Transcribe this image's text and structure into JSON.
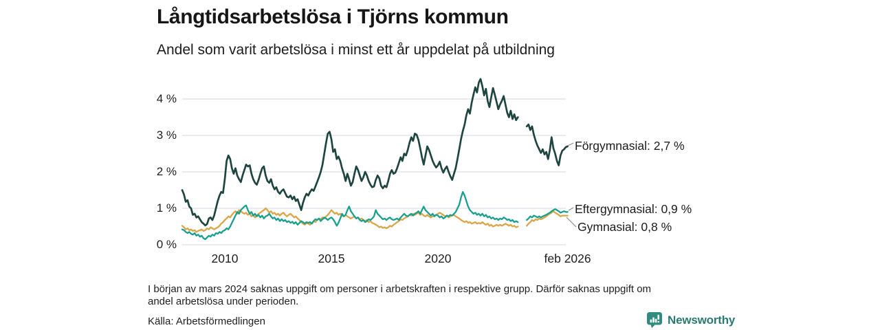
{
  "header": {
    "title": "Långtidsarbetslösa i Tjörns kommun",
    "subtitle": "Andel som varit arbetslösa i minst ett år uppdelat på utbildning"
  },
  "chart_data": {
    "type": "line",
    "title": "Långtidsarbetslösa i Tjörns kommun",
    "subtitle": "Andel som varit arbetslösa i minst ett år uppdelat på utbildning",
    "unit": "%",
    "grid": true,
    "x_start_year": 2008.0,
    "points_per_year": 12,
    "x_end": "feb 2026",
    "ylim": [
      0,
      4.6
    ],
    "y_ticks": [
      {
        "value": 0,
        "label": "0 %"
      },
      {
        "value": 1,
        "label": "1 %"
      },
      {
        "value": 2,
        "label": "2 %"
      },
      {
        "value": 3,
        "label": "3 %"
      },
      {
        "value": 4,
        "label": "4 %"
      }
    ],
    "x_ticks": [
      {
        "t": 2010,
        "label": "2010"
      },
      {
        "t": 2015,
        "label": "2015"
      },
      {
        "t": 2020,
        "label": "2020"
      },
      {
        "t": 2026.083,
        "label": "feb 2026"
      }
    ],
    "annotations": [
      {
        "text": "Förgymnasial: 2,7 %"
      },
      {
        "text": "Eftergymnasial: 0,9 %"
      },
      {
        "text": "Gymnasial: 0,8 %"
      }
    ],
    "series": [
      {
        "name": "Förgymnasial",
        "color": "#1e4540",
        "end_value": "2,7 %",
        "values": [
          1.5,
          1.38,
          1.18,
          1.22,
          1.05,
          1.0,
          0.82,
          0.85,
          0.75,
          0.78,
          0.7,
          0.62,
          0.58,
          0.53,
          0.57,
          0.72,
          0.75,
          0.68,
          0.8,
          1.0,
          1.2,
          1.35,
          1.45,
          1.42,
          1.8,
          2.3,
          2.45,
          2.35,
          2.1,
          1.95,
          2.1,
          1.9,
          1.8,
          1.72,
          1.9,
          2.05,
          2.2,
          2.15,
          2.18,
          1.95,
          1.8,
          1.7,
          1.65,
          1.78,
          1.95,
          2.1,
          2.15,
          1.9,
          1.75,
          1.7,
          1.8,
          1.62,
          1.52,
          1.58,
          1.45,
          1.4,
          1.48,
          1.52,
          1.42,
          1.32,
          1.3,
          1.35,
          1.25,
          1.32,
          1.2,
          1.25,
          1.1,
          0.95,
          1.15,
          1.3,
          1.4,
          1.35,
          1.45,
          1.52,
          1.48,
          1.6,
          1.72,
          1.85,
          2.0,
          2.2,
          2.5,
          2.8,
          3.05,
          3.1,
          2.9,
          2.55,
          2.62,
          2.35,
          2.42,
          2.3,
          2.1,
          1.95,
          1.75,
          1.95,
          1.8,
          1.62,
          1.72,
          1.95,
          2.15,
          2.05,
          1.9,
          1.75,
          1.85,
          2.0,
          1.9,
          1.75,
          1.65,
          1.58,
          1.6,
          1.78,
          1.9,
          1.82,
          1.62,
          1.55,
          1.62,
          1.58,
          1.75,
          1.95,
          2.05,
          1.95,
          1.98,
          2.1,
          2.25,
          2.4,
          2.3,
          2.5,
          2.45,
          2.6,
          2.8,
          2.95,
          2.85,
          3.05,
          3.02,
          2.88,
          2.65,
          2.4,
          2.2,
          2.45,
          2.7,
          2.6,
          2.45,
          2.3,
          2.2,
          2.12,
          2.18,
          2.28,
          2.1,
          1.98,
          2.08,
          2.15,
          2.0,
          1.88,
          1.78,
          1.95,
          2.1,
          2.35,
          2.62,
          2.9,
          3.12,
          3.3,
          3.55,
          3.72,
          3.6,
          3.9,
          4.12,
          4.32,
          4.18,
          4.45,
          4.55,
          4.35,
          4.1,
          4.28,
          3.95,
          3.78,
          4.05,
          4.3,
          4.12,
          3.92,
          3.72,
          3.85,
          3.95,
          4.08,
          3.85,
          3.62,
          3.5,
          3.68,
          3.45,
          3.58,
          3.42,
          3.5,
          null,
          null,
          null,
          null,
          3.25,
          3.3,
          3.15,
          3.25,
          3.02,
          2.85,
          2.72,
          2.62,
          2.52,
          2.62,
          2.48,
          2.55,
          2.35,
          2.6,
          2.95,
          2.65,
          2.5,
          2.3,
          2.18,
          2.45,
          2.58,
          2.62,
          2.68,
          2.7
        ]
      },
      {
        "name": "Eftergymnasial",
        "color": "#18a08e",
        "end_value": "0,9 %",
        "values": [
          0.42,
          0.4,
          0.35,
          0.32,
          0.35,
          0.3,
          0.28,
          0.32,
          0.25,
          0.28,
          0.22,
          0.25,
          0.18,
          0.15,
          0.2,
          0.25,
          0.22,
          0.28,
          0.25,
          0.32,
          0.3,
          0.35,
          0.32,
          0.38,
          0.4,
          0.45,
          0.42,
          0.5,
          0.6,
          0.7,
          0.8,
          0.9,
          0.85,
          0.95,
          1.0,
          1.05,
          1.08,
          0.95,
          0.85,
          0.9,
          0.8,
          0.85,
          0.78,
          0.82,
          0.75,
          0.8,
          0.72,
          0.78,
          0.8,
          0.85,
          0.78,
          0.72,
          0.75,
          0.68,
          0.72,
          0.65,
          0.7,
          0.65,
          0.68,
          0.62,
          0.65,
          0.6,
          0.63,
          0.58,
          0.62,
          0.55,
          0.6,
          0.65,
          0.62,
          0.58,
          0.62,
          0.6,
          0.62,
          0.58,
          0.65,
          0.7,
          0.68,
          0.72,
          0.65,
          0.7,
          0.75,
          0.72,
          0.68,
          0.72,
          0.75,
          0.7,
          0.62,
          0.52,
          0.6,
          0.72,
          0.85,
          0.78,
          0.82,
          0.95,
          1.05,
          0.92,
          0.85,
          0.78,
          0.72,
          0.75,
          0.68,
          0.65,
          0.68,
          0.62,
          0.65,
          0.7,
          0.68,
          0.72,
          0.78,
          0.95,
          0.85,
          0.8,
          0.75,
          0.7,
          0.72,
          0.68,
          0.72,
          0.75,
          0.7,
          0.68,
          0.7,
          0.72,
          0.68,
          0.75,
          0.8,
          0.85,
          0.8,
          0.78,
          0.82,
          0.85,
          0.8,
          0.85,
          0.88,
          0.92,
          0.85,
          0.95,
          1.05,
          0.95,
          0.9,
          0.85,
          0.8,
          0.85,
          0.78,
          0.82,
          0.8,
          0.75,
          0.78,
          0.72,
          0.75,
          0.8,
          0.78,
          0.82,
          0.8,
          0.85,
          0.9,
          1.0,
          1.1,
          1.3,
          1.45,
          1.35,
          1.2,
          1.05,
          0.95,
          0.9,
          0.85,
          0.88,
          0.82,
          0.85,
          0.8,
          0.85,
          0.78,
          0.82,
          0.75,
          0.78,
          0.72,
          0.75,
          0.7,
          0.72,
          0.68,
          0.72,
          0.7,
          0.75,
          0.72,
          0.68,
          0.7,
          0.65,
          0.68,
          0.62,
          0.65,
          0.62,
          null,
          null,
          null,
          null,
          0.68,
          0.72,
          0.78,
          0.75,
          0.8,
          0.78,
          0.75,
          0.78,
          0.75,
          0.78,
          0.8,
          0.82,
          0.85,
          0.88,
          0.92,
          0.95,
          0.98,
          0.95,
          0.92,
          0.88,
          0.9,
          0.92,
          0.9,
          0.9
        ]
      },
      {
        "name": "Gymnasial",
        "color": "#d9a546",
        "end_value": "0,8 %",
        "values": [
          0.52,
          0.48,
          0.42,
          0.45,
          0.4,
          0.42,
          0.38,
          0.4,
          0.35,
          0.38,
          0.4,
          0.42,
          0.38,
          0.4,
          0.45,
          0.42,
          0.48,
          0.45,
          0.42,
          0.45,
          0.48,
          0.52,
          0.58,
          0.62,
          0.68,
          0.72,
          0.78,
          0.75,
          0.82,
          0.88,
          0.92,
          0.85,
          0.95,
          0.92,
          0.88,
          0.85,
          0.88,
          0.82,
          0.85,
          0.78,
          0.82,
          0.75,
          0.8,
          0.85,
          0.88,
          0.92,
          0.95,
          1.0,
          0.95,
          0.88,
          0.92,
          0.85,
          0.88,
          0.82,
          0.85,
          0.8,
          0.85,
          0.88,
          0.82,
          0.78,
          0.82,
          0.85,
          0.8,
          0.75,
          0.78,
          0.72,
          0.68,
          0.62,
          0.58,
          0.55,
          0.6,
          0.58,
          0.55,
          0.6,
          0.65,
          0.62,
          0.68,
          0.72,
          0.7,
          0.75,
          0.72,
          0.78,
          0.82,
          0.88,
          0.95,
          0.9,
          0.85,
          0.88,
          0.82,
          0.85,
          0.8,
          0.78,
          0.82,
          0.78,
          0.75,
          0.72,
          0.75,
          0.78,
          0.72,
          0.75,
          0.7,
          0.72,
          0.68,
          0.65,
          0.68,
          0.62,
          0.65,
          0.6,
          0.58,
          0.55,
          0.52,
          0.48,
          0.5,
          0.46,
          0.48,
          0.45,
          0.48,
          0.52,
          0.5,
          0.55,
          0.58,
          0.62,
          0.65,
          0.7,
          0.68,
          0.72,
          0.75,
          0.78,
          0.82,
          0.8,
          0.85,
          0.82,
          0.85,
          0.88,
          0.82,
          0.85,
          0.8,
          0.78,
          0.82,
          0.78,
          0.75,
          0.78,
          0.8,
          0.82,
          0.85,
          0.88,
          0.85,
          0.82,
          0.78,
          0.8,
          0.75,
          0.78,
          0.8,
          0.82,
          0.78,
          0.75,
          0.72,
          0.68,
          0.65,
          0.62,
          0.65,
          0.6,
          0.62,
          0.58,
          0.6,
          0.62,
          0.58,
          0.6,
          0.58,
          0.62,
          0.58,
          0.55,
          0.58,
          0.52,
          0.55,
          0.5,
          0.52,
          0.55,
          0.52,
          0.55,
          0.52,
          0.55,
          0.58,
          0.55,
          0.52,
          0.55,
          0.5,
          0.52,
          0.48,
          0.5,
          null,
          null,
          null,
          null,
          0.52,
          0.58,
          0.62,
          0.68,
          0.65,
          0.7,
          0.68,
          0.72,
          0.7,
          0.72,
          0.75,
          0.78,
          0.82,
          0.85,
          0.88,
          0.92,
          0.88,
          0.85,
          0.82,
          0.78,
          0.8,
          0.8,
          0.8,
          0.8
        ]
      }
    ],
    "colors": {
      "grid": "#e7e7ee",
      "leader": "#8d8d8d",
      "text": "#1c1c1c"
    }
  },
  "footnote": {
    "line1": "I början av mars 2024 saknas uppgift om personer i arbetskraften i respektive grupp. Därför saknas uppgift om",
    "line2": "andel arbetslösa under perioden."
  },
  "footer": {
    "source": "Källa: Arbetsförmedlingen",
    "brand": "Newsworthy"
  }
}
